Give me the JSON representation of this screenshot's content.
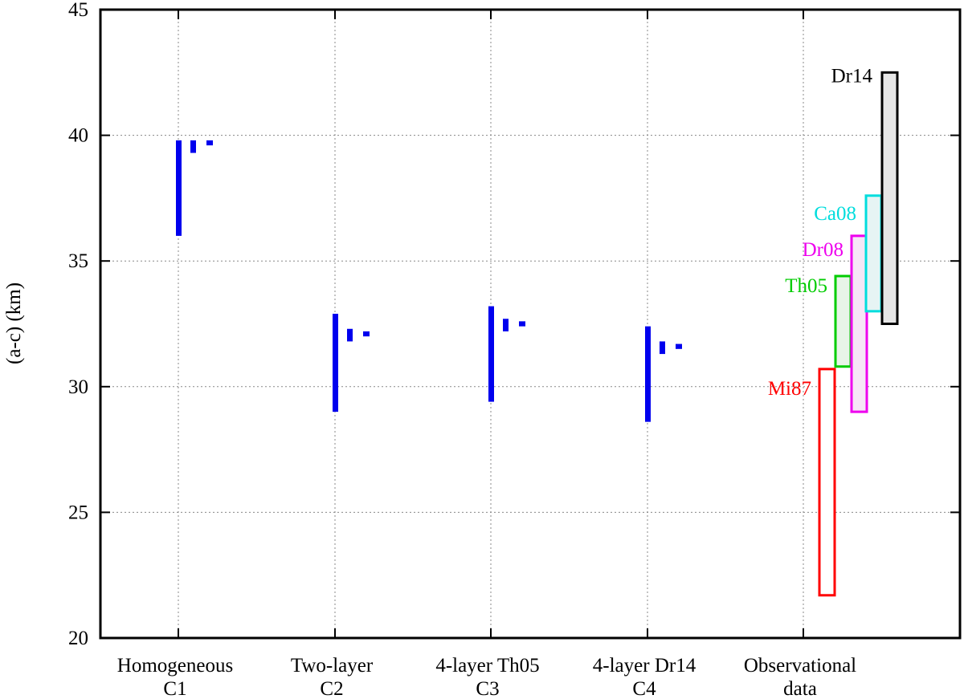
{
  "chart_data": {
    "type": "range-bar",
    "ylabel": "(a-c) (km)",
    "ylim": [
      20,
      45
    ],
    "yticks": [
      "20",
      "25",
      "30",
      "35",
      "40",
      "45"
    ],
    "grid": true,
    "categories": [
      {
        "line1": "Homogeneous",
        "line2": "C1"
      },
      {
        "line1": "Two-layer",
        "line2": "C2"
      },
      {
        "line1": "4-layer Th05",
        "line2": "C3"
      },
      {
        "line1": "4-layer Dr14",
        "line2": "C4"
      },
      {
        "line1": "Observational",
        "line2": "data"
      }
    ],
    "model_ranges": [
      {
        "category": 0,
        "ranges": [
          [
            36.0,
            39.8
          ],
          [
            39.3,
            39.8
          ],
          [
            39.6,
            39.8
          ]
        ]
      },
      {
        "category": 1,
        "ranges": [
          [
            29.0,
            32.9
          ],
          [
            31.8,
            32.3
          ],
          [
            32.0,
            32.2
          ]
        ]
      },
      {
        "category": 2,
        "ranges": [
          [
            29.4,
            33.2
          ],
          [
            32.2,
            32.7
          ],
          [
            32.4,
            32.6
          ]
        ]
      },
      {
        "category": 3,
        "ranges": [
          [
            28.6,
            32.4
          ],
          [
            31.3,
            31.8
          ],
          [
            31.5,
            31.7
          ]
        ]
      }
    ],
    "model_color": "#0000ee",
    "observations": [
      {
        "label": "Mi87",
        "ymin": 21.7,
        "ymax": 30.7,
        "color": "#ff0000",
        "fill": "#ffffff"
      },
      {
        "label": "Th05",
        "ymin": 30.8,
        "ymax": 34.4,
        "color": "#00cc00",
        "fill": "#e8f4e8"
      },
      {
        "label": "Dr08",
        "ymin": 29.0,
        "ymax": 36.0,
        "color": "#ee00ee",
        "fill": "#f6e6f6"
      },
      {
        "label": "Ca08",
        "ymin": 33.0,
        "ymax": 37.6,
        "color": "#00dddd",
        "fill": "#e6f4f4"
      },
      {
        "label": "Dr14",
        "ymin": 32.5,
        "ymax": 42.5,
        "color": "#000000",
        "fill": "#e6e6e6"
      }
    ]
  }
}
